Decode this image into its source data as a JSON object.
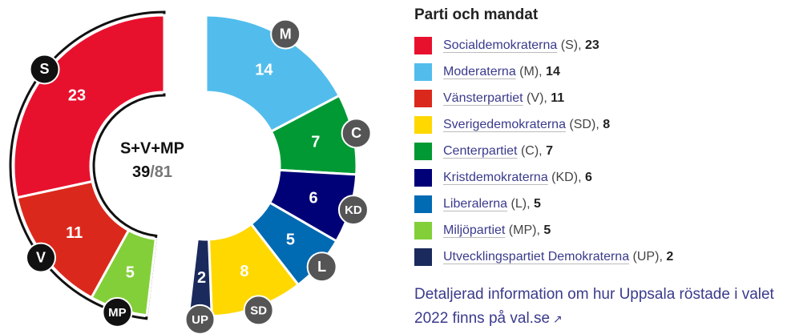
{
  "chart_data": {
    "type": "donut",
    "coalition": {
      "label": "S+V+MP",
      "seats": 39,
      "total": 81
    },
    "parties": [
      {
        "name": "Socialdemokraterna",
        "abbr": "S",
        "seats": 23,
        "color": "#e8112d",
        "group": "left"
      },
      {
        "name": "Moderaterna",
        "abbr": "M",
        "seats": 14,
        "color": "#52bdec",
        "group": "right"
      },
      {
        "name": "Vänsterpartiet",
        "abbr": "V",
        "seats": 11,
        "color": "#da291c",
        "group": "left"
      },
      {
        "name": "Sverigedemokraterna",
        "abbr": "SD",
        "seats": 8,
        "color": "#ffd800",
        "group": "right"
      },
      {
        "name": "Centerpartiet",
        "abbr": "C",
        "seats": 7,
        "color": "#009933",
        "group": "right"
      },
      {
        "name": "Kristdemokraterna",
        "abbr": "KD",
        "seats": 6,
        "color": "#000077",
        "group": "right"
      },
      {
        "name": "Liberalerna",
        "abbr": "L",
        "seats": 5,
        "color": "#006ab3",
        "group": "right"
      },
      {
        "name": "Miljöpartiet",
        "abbr": "MP",
        "seats": 5,
        "color": "#83cf39",
        "group": "left"
      },
      {
        "name": "Utvecklingspartiet Demokraterna",
        "abbr": "UP",
        "seats": 2,
        "color": "#1b2a5c",
        "group": "right"
      }
    ],
    "left_order": [
      "S",
      "V",
      "MP"
    ],
    "right_order": [
      "M",
      "C",
      "KD",
      "L",
      "SD",
      "UP"
    ],
    "legend_title": "Parti och mandat",
    "footnote": "Detaljerad information om hur Uppsala röstade i valet 2022 finns på val.se"
  }
}
